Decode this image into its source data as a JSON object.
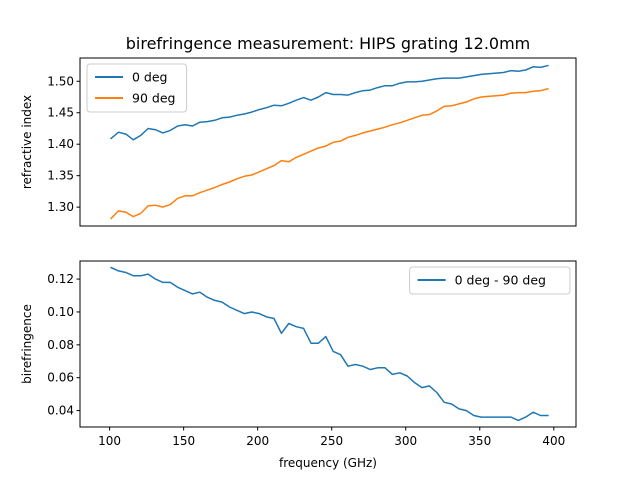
{
  "figure": {
    "title": "birefringence measurement: HIPS grating 12.0mm"
  },
  "chart_data": [
    {
      "type": "line",
      "title": "birefringence measurement: HIPS grating 12.0mm",
      "xlabel": "",
      "ylabel": "refractive index",
      "xlim": [
        80,
        415
      ],
      "ylim": [
        1.27,
        1.537
      ],
      "yticks": [
        "1.30",
        "1.35",
        "1.40",
        "1.45",
        "1.50"
      ],
      "legend": "top-left",
      "x": [
        101,
        106,
        111,
        116,
        121,
        126,
        131,
        136,
        141,
        146,
        151,
        156,
        161,
        166,
        171,
        176,
        181,
        186,
        191,
        196,
        201,
        206,
        211,
        216,
        221,
        226,
        231,
        236,
        241,
        246,
        251,
        256,
        261,
        266,
        271,
        276,
        281,
        286,
        291,
        296,
        301,
        306,
        311,
        316,
        321,
        326,
        331,
        336,
        341,
        346,
        351,
        356,
        361,
        366,
        371,
        376,
        381,
        386,
        391,
        396
      ],
      "series": [
        {
          "name": "0 deg",
          "color": "#1f77b4",
          "values": [
            1.409,
            1.419,
            1.416,
            1.407,
            1.414,
            1.425,
            1.423,
            1.418,
            1.422,
            1.429,
            1.431,
            1.429,
            1.435,
            1.436,
            1.438,
            1.442,
            1.443,
            1.446,
            1.448,
            1.451,
            1.455,
            1.458,
            1.462,
            1.461,
            1.465,
            1.47,
            1.474,
            1.47,
            1.475,
            1.482,
            1.479,
            1.479,
            1.478,
            1.482,
            1.485,
            1.486,
            1.49,
            1.493,
            1.493,
            1.497,
            1.499,
            1.499,
            1.5,
            1.502,
            1.504,
            1.505,
            1.505,
            1.505,
            1.507,
            1.509,
            1.511,
            1.512,
            1.513,
            1.514,
            1.517,
            1.516,
            1.518,
            1.523,
            1.522,
            1.525
          ]
        },
        {
          "name": "90 deg",
          "color": "#ff7f0e",
          "values": [
            1.282,
            1.294,
            1.292,
            1.285,
            1.29,
            1.302,
            1.303,
            1.3,
            1.304,
            1.314,
            1.318,
            1.318,
            1.323,
            1.327,
            1.331,
            1.336,
            1.34,
            1.345,
            1.349,
            1.351,
            1.356,
            1.361,
            1.366,
            1.374,
            1.372,
            1.379,
            1.384,
            1.389,
            1.394,
            1.397,
            1.403,
            1.405,
            1.411,
            1.414,
            1.418,
            1.421,
            1.424,
            1.427,
            1.431,
            1.434,
            1.438,
            1.442,
            1.446,
            1.447,
            1.453,
            1.46,
            1.461,
            1.464,
            1.467,
            1.472,
            1.475,
            1.476,
            1.477,
            1.478,
            1.481,
            1.482,
            1.482,
            1.484,
            1.485,
            1.488
          ]
        }
      ]
    },
    {
      "type": "line",
      "title": "",
      "xlabel": "frequency (GHz)",
      "ylabel": "birefringence",
      "xlim": [
        80,
        415
      ],
      "ylim": [
        0.03,
        0.131
      ],
      "xticks": [
        "100",
        "150",
        "200",
        "250",
        "300",
        "350",
        "400"
      ],
      "yticks": [
        "0.04",
        "0.06",
        "0.08",
        "0.10",
        "0.12"
      ],
      "legend": "top-right",
      "x": [
        101,
        106,
        111,
        116,
        121,
        126,
        131,
        136,
        141,
        146,
        151,
        156,
        161,
        166,
        171,
        176,
        181,
        186,
        191,
        196,
        201,
        206,
        211,
        216,
        221,
        226,
        231,
        236,
        241,
        246,
        251,
        256,
        261,
        266,
        271,
        276,
        281,
        286,
        291,
        296,
        301,
        306,
        311,
        316,
        321,
        326,
        331,
        336,
        341,
        346,
        351,
        356,
        361,
        366,
        371,
        376,
        381,
        386,
        391,
        396
      ],
      "series": [
        {
          "name": "0 deg - 90 deg",
          "color": "#1f77b4",
          "values": [
            0.127,
            0.125,
            0.124,
            0.122,
            0.122,
            0.123,
            0.12,
            0.118,
            0.118,
            0.115,
            0.113,
            0.111,
            0.112,
            0.109,
            0.107,
            0.106,
            0.103,
            0.101,
            0.099,
            0.1,
            0.099,
            0.097,
            0.096,
            0.087,
            0.093,
            0.091,
            0.09,
            0.081,
            0.081,
            0.085,
            0.076,
            0.074,
            0.067,
            0.068,
            0.067,
            0.065,
            0.066,
            0.066,
            0.062,
            0.063,
            0.061,
            0.057,
            0.054,
            0.055,
            0.051,
            0.045,
            0.044,
            0.041,
            0.04,
            0.037,
            0.036,
            0.036,
            0.036,
            0.036,
            0.036,
            0.034,
            0.036,
            0.039,
            0.037,
            0.037
          ]
        }
      ]
    }
  ]
}
